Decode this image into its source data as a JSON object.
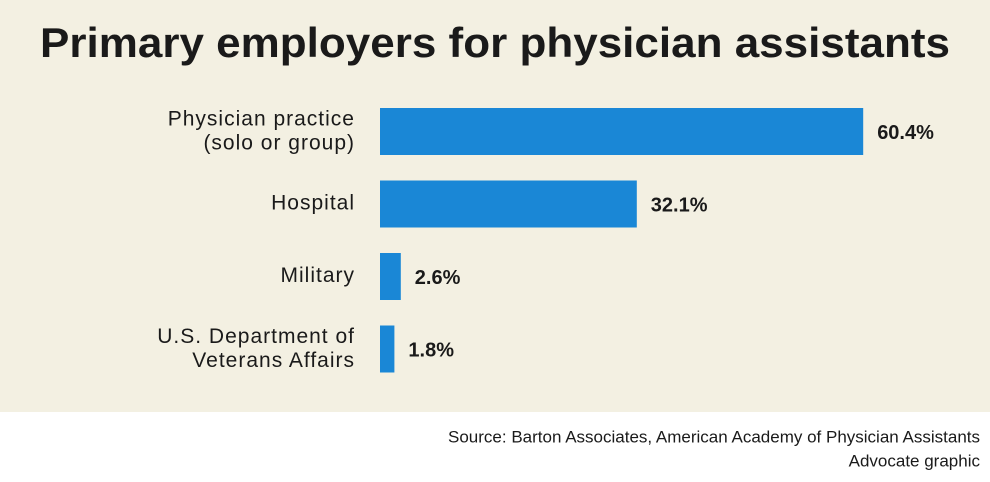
{
  "chart_data": {
    "type": "bar",
    "orientation": "horizontal",
    "title": "Primary employers for physician assistants",
    "categories": [
      "Physician practice\n(solo or group)",
      "Hospital",
      "Military",
      "U.S. Department of\nVeterans Affairs"
    ],
    "values": [
      60.4,
      32.1,
      2.6,
      1.8
    ],
    "value_labels": [
      "60.4%",
      "32.1%",
      "2.6%",
      "1.8%"
    ],
    "color": "#1a87d6",
    "source": "Source: Barton Associates, American Academy of Physician Assistants",
    "credit": "Advocate graphic"
  }
}
